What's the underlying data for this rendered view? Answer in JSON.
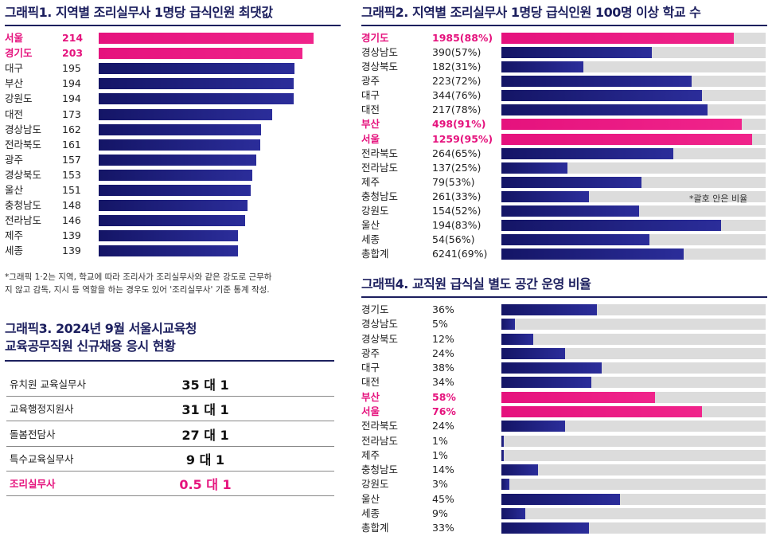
{
  "chart_data": [
    {
      "type": "bar",
      "title": "그래픽1. 지역별 조리실무사 1명당 급식인원 최댓값",
      "categories": [
        "서울",
        "경기도",
        "대구",
        "부산",
        "강원도",
        "대전",
        "경상남도",
        "전라북도",
        "광주",
        "경상북도",
        "울산",
        "충청남도",
        "전라남도",
        "제주",
        "세종"
      ],
      "values": [
        214,
        203,
        195,
        194,
        194,
        173,
        162,
        161,
        157,
        153,
        151,
        148,
        146,
        139,
        139
      ],
      "highlight": [
        "서울",
        "경기도"
      ],
      "footnote_1": "*그래픽 1·2는 지역, 학교에 따라 조리사가 조리실무사와 같은 강도로 근무하",
      "footnote_2": "지 않고 감독, 지시 등 역할을 하는 경우도 있어 '조리실무사' 기준 통계 작성."
    },
    {
      "type": "bar",
      "title": "그래픽2. 지역별 조리실무사 1명당 급식인원 100명 이상 학교 수",
      "categories": [
        "경기도",
        "경상남도",
        "경상북도",
        "광주",
        "대구",
        "대전",
        "부산",
        "서울",
        "전라북도",
        "전라남도",
        "제주",
        "충청남도",
        "강원도",
        "울산",
        "세종",
        "총합계"
      ],
      "values": [
        1985,
        390,
        182,
        223,
        344,
        217,
        498,
        1259,
        264,
        137,
        79,
        261,
        154,
        194,
        54,
        6241
      ],
      "percents": [
        88,
        57,
        31,
        72,
        76,
        78,
        91,
        95,
        65,
        25,
        53,
        33,
        52,
        83,
        56,
        69
      ],
      "labels": [
        "1985(88%)",
        "390(57%)",
        "182(31%)",
        "223(72%)",
        "344(76%)",
        "217(78%)",
        "498(91%)",
        "1259(95%)",
        "264(65%)",
        "137(25%)",
        "79(53%)",
        "261(33%)",
        "154(52%)",
        "194(83%)",
        "54(56%)",
        "6241(69%)"
      ],
      "highlight": [
        "경기도",
        "부산",
        "서울"
      ],
      "note": "*괄호 안은 비율"
    },
    {
      "type": "table",
      "title_1": "그래픽3. 2024년 9월 서울시교육청",
      "title_2": "교육공무직원 신규채용 응시 현황",
      "rows": [
        {
          "job": "유치원 교육실무사",
          "ratio": "35 대 1"
        },
        {
          "job": "교육행정지원사",
          "ratio": "31 대 1"
        },
        {
          "job": "돌봄전담사",
          "ratio": "27 대 1"
        },
        {
          "job": "특수교육실무사",
          "ratio": "9 대 1"
        },
        {
          "job": "조리실무사",
          "ratio": "0.5 대 1"
        }
      ],
      "highlight": [
        "조리실무사"
      ]
    },
    {
      "type": "bar",
      "title": "그래픽4. 교직원 급식실 별도 공간 운영 비율",
      "categories": [
        "경기도",
        "경상남도",
        "경상북도",
        "광주",
        "대구",
        "대전",
        "부산",
        "서울",
        "전라북도",
        "전라남도",
        "제주",
        "충청남도",
        "강원도",
        "울산",
        "세종",
        "총합계"
      ],
      "values": [
        36,
        5,
        12,
        24,
        38,
        34,
        58,
        76,
        24,
        1,
        1,
        14,
        3,
        45,
        9,
        33
      ],
      "labels": [
        "36%",
        "5%",
        "12%",
        "24%",
        "38%",
        "34%",
        "58%",
        "76%",
        "24%",
        "1%",
        "1%",
        "14%",
        "3%",
        "45%",
        "9%",
        "33%"
      ],
      "highlight": [
        "부산",
        "서울"
      ],
      "ylim": [
        0,
        100
      ]
    }
  ],
  "colors": {
    "navy": "#1c1f5e",
    "bar": "#1e1f7d",
    "pink": "#e5127d",
    "track": "#dcdcdc"
  }
}
